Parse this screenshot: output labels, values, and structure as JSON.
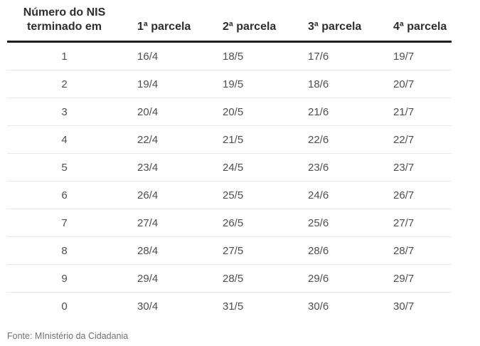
{
  "table": {
    "header": {
      "nis_line1": "Número do NIS",
      "nis_line2": "terminado em",
      "parcelas": [
        "1ª parcela",
        "2ª parcela",
        "3ª parcela",
        "4ª parcela"
      ]
    },
    "rows": [
      {
        "nis": "1",
        "values": [
          "16/4",
          "18/5",
          "17/6",
          "19/7"
        ]
      },
      {
        "nis": "2",
        "values": [
          "19/4",
          "19/5",
          "18/6",
          "20/7"
        ]
      },
      {
        "nis": "3",
        "values": [
          "20/4",
          "20/5",
          "21/6",
          "21/7"
        ]
      },
      {
        "nis": "4",
        "values": [
          "22/4",
          "21/5",
          "22/6",
          "22/7"
        ]
      },
      {
        "nis": "5",
        "values": [
          "23/4",
          "24/5",
          "23/6",
          "23/7"
        ]
      },
      {
        "nis": "6",
        "values": [
          "26/4",
          "25/5",
          "24/6",
          "26/7"
        ]
      },
      {
        "nis": "7",
        "values": [
          "27/4",
          "26/5",
          "25/6",
          "27/7"
        ]
      },
      {
        "nis": "8",
        "values": [
          "28/4",
          "27/5",
          "28/6",
          "28/7"
        ]
      },
      {
        "nis": "9",
        "values": [
          "29/4",
          "28/5",
          "29/6",
          "29/7"
        ]
      },
      {
        "nis": "0",
        "values": [
          "30/4",
          "31/5",
          "30/6",
          "30/7"
        ]
      }
    ]
  },
  "footer": {
    "source": "Fonte: MInistério da Cidadania"
  },
  "colors": {
    "background": "#ffffff",
    "header_text": "#2d2d2d",
    "value_text": "#4e4e4e",
    "header_rule": "#1f1f1f",
    "row_separator": "#e7e7e7",
    "source_text": "#717171"
  },
  "chart_data": {
    "type": "table",
    "title": "",
    "columns": [
      "Número do NIS terminado em",
      "1ª parcela",
      "2ª parcela",
      "3ª parcela",
      "4ª parcela"
    ],
    "rows": [
      [
        "1",
        "16/4",
        "18/5",
        "17/6",
        "19/7"
      ],
      [
        "2",
        "19/4",
        "19/5",
        "18/6",
        "20/7"
      ],
      [
        "3",
        "20/4",
        "20/5",
        "21/6",
        "21/7"
      ],
      [
        "4",
        "22/4",
        "21/5",
        "22/6",
        "22/7"
      ],
      [
        "5",
        "23/4",
        "24/5",
        "23/6",
        "23/7"
      ],
      [
        "6",
        "26/4",
        "25/5",
        "24/6",
        "26/7"
      ],
      [
        "7",
        "27/4",
        "26/5",
        "25/6",
        "27/7"
      ],
      [
        "8",
        "28/4",
        "27/5",
        "28/6",
        "28/7"
      ],
      [
        "9",
        "29/4",
        "28/5",
        "29/6",
        "29/7"
      ],
      [
        "0",
        "30/4",
        "31/5",
        "30/6",
        "30/7"
      ]
    ],
    "annotations": [
      "Fonte: MInistério da Cidadania"
    ]
  }
}
